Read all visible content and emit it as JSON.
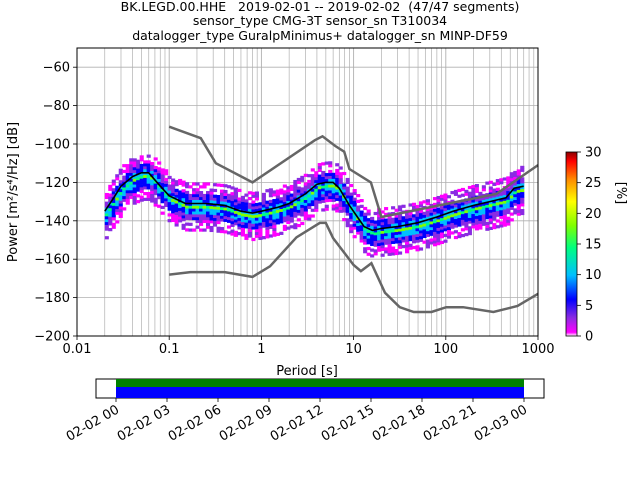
{
  "title_lines": [
    "BK.LEGD.00.HHE   2019-02-01 -- 2019-02-02  (47/47 segments)",
    "sensor_type CMG-3T sensor_sn T310034",
    "datalogger_type GuralpMinimus+ datalogger_sn MINP-DF59"
  ],
  "chart_data": {
    "type": "heatmap",
    "xlabel": "Period [s]",
    "ylabel": "Power [m²/s⁴/Hz] [dB]",
    "x_scale": "log",
    "xlim": [
      0.01,
      1000
    ],
    "ylim": [
      -200,
      -50
    ],
    "x_ticks": [
      {
        "value": 0.01,
        "label": "0.01"
      },
      {
        "value": 0.1,
        "label": "0.1"
      },
      {
        "value": 1,
        "label": "1"
      },
      {
        "value": 10,
        "label": "10"
      },
      {
        "value": 100,
        "label": "100"
      },
      {
        "value": 1000,
        "label": "1000"
      }
    ],
    "y_ticks": [
      {
        "value": -60,
        "label": "−60"
      },
      {
        "value": -80,
        "label": "−80"
      },
      {
        "value": -100,
        "label": "−100"
      },
      {
        "value": -120,
        "label": "−120"
      },
      {
        "value": -140,
        "label": "−140"
      },
      {
        "value": -160,
        "label": "−160"
      },
      {
        "value": -180,
        "label": "−180"
      },
      {
        "value": -200,
        "label": "−200"
      }
    ],
    "grid": true,
    "mean_psd": [
      {
        "x": 0.02,
        "y": -135
      },
      {
        "x": 0.025,
        "y": -128
      },
      {
        "x": 0.03,
        "y": -122
      },
      {
        "x": 0.04,
        "y": -117
      },
      {
        "x": 0.05,
        "y": -115
      },
      {
        "x": 0.06,
        "y": -115
      },
      {
        "x": 0.08,
        "y": -122
      },
      {
        "x": 0.1,
        "y": -127
      },
      {
        "x": 0.15,
        "y": -131
      },
      {
        "x": 0.25,
        "y": -131
      },
      {
        "x": 0.4,
        "y": -132
      },
      {
        "x": 0.6,
        "y": -135
      },
      {
        "x": 0.8,
        "y": -136
      },
      {
        "x": 1,
        "y": -135
      },
      {
        "x": 1.5,
        "y": -133
      },
      {
        "x": 2,
        "y": -131
      },
      {
        "x": 3,
        "y": -126
      },
      {
        "x": 4,
        "y": -121
      },
      {
        "x": 5,
        "y": -120
      },
      {
        "x": 6,
        "y": -120
      },
      {
        "x": 7,
        "y": -123
      },
      {
        "x": 9,
        "y": -132
      },
      {
        "x": 11,
        "y": -138
      },
      {
        "x": 13,
        "y": -143
      },
      {
        "x": 16,
        "y": -145
      },
      {
        "x": 20,
        "y": -144
      },
      {
        "x": 30,
        "y": -143
      },
      {
        "x": 50,
        "y": -141
      },
      {
        "x": 80,
        "y": -138
      },
      {
        "x": 120,
        "y": -135
      },
      {
        "x": 200,
        "y": -132
      },
      {
        "x": 300,
        "y": -130
      },
      {
        "x": 450,
        "y": -128
      },
      {
        "x": 550,
        "y": -123
      },
      {
        "x": 700,
        "y": -122
      }
    ],
    "nhnm": [
      {
        "x": 0.1,
        "y": -91
      },
      {
        "x": 0.22,
        "y": -97
      },
      {
        "x": 0.32,
        "y": -110
      },
      {
        "x": 0.8,
        "y": -120
      },
      {
        "x": 3.8,
        "y": -98
      },
      {
        "x": 4.6,
        "y": -96
      },
      {
        "x": 6.3,
        "y": -101
      },
      {
        "x": 7.9,
        "y": -104
      },
      {
        "x": 9,
        "y": -113
      },
      {
        "x": 15.4,
        "y": -120
      },
      {
        "x": 20,
        "y": -138
      },
      {
        "x": 354,
        "y": -126
      },
      {
        "x": 1000,
        "y": -111
      }
    ],
    "nlnm": [
      {
        "x": 0.1,
        "y": -168
      },
      {
        "x": 0.17,
        "y": -166.7
      },
      {
        "x": 0.4,
        "y": -166.7
      },
      {
        "x": 0.8,
        "y": -169.2
      },
      {
        "x": 1.24,
        "y": -163.7
      },
      {
        "x": 2.4,
        "y": -148.6
      },
      {
        "x": 4.3,
        "y": -141.1
      },
      {
        "x": 5,
        "y": -141.1
      },
      {
        "x": 6,
        "y": -149
      },
      {
        "x": 10,
        "y": -163
      },
      {
        "x": 12,
        "y": -166.2
      },
      {
        "x": 15.6,
        "y": -162.1
      },
      {
        "x": 21.9,
        "y": -177.5
      },
      {
        "x": 31.6,
        "y": -185
      },
      {
        "x": 45,
        "y": -187.5
      },
      {
        "x": 70,
        "y": -187.5
      },
      {
        "x": 101,
        "y": -185
      },
      {
        "x": 154,
        "y": -185
      },
      {
        "x": 328,
        "y": -187.5
      },
      {
        "x": 600,
        "y": -184.4
      },
      {
        "x": 1000,
        "y": -178
      }
    ],
    "colorbar": {
      "label": "[%]",
      "range": [
        0,
        30
      ],
      "ticks": [
        {
          "value": 0,
          "label": "0"
        },
        {
          "value": 5,
          "label": "5"
        },
        {
          "value": 10,
          "label": "10"
        },
        {
          "value": 15,
          "label": "15"
        },
        {
          "value": 20,
          "label": "20"
        },
        {
          "value": 25,
          "label": "25"
        },
        {
          "value": 30,
          "label": "30"
        }
      ],
      "colors": [
        "#ff00ff",
        "#8a2be2",
        "#0000ff",
        "#00bfff",
        "#00ff7f",
        "#7fff00",
        "#ffff00",
        "#ff8c00",
        "#ff0000",
        "#8b0000"
      ]
    },
    "segments_timeline": {
      "ticks": [
        "02-02 00",
        "02-02 03",
        "02-02 06",
        "02-02 09",
        "02-02 12",
        "02-02 15",
        "02-02 18",
        "02-02 21",
        "02-03 00"
      ],
      "coverage_color": "#0000ff",
      "available_color": "#008000"
    }
  }
}
